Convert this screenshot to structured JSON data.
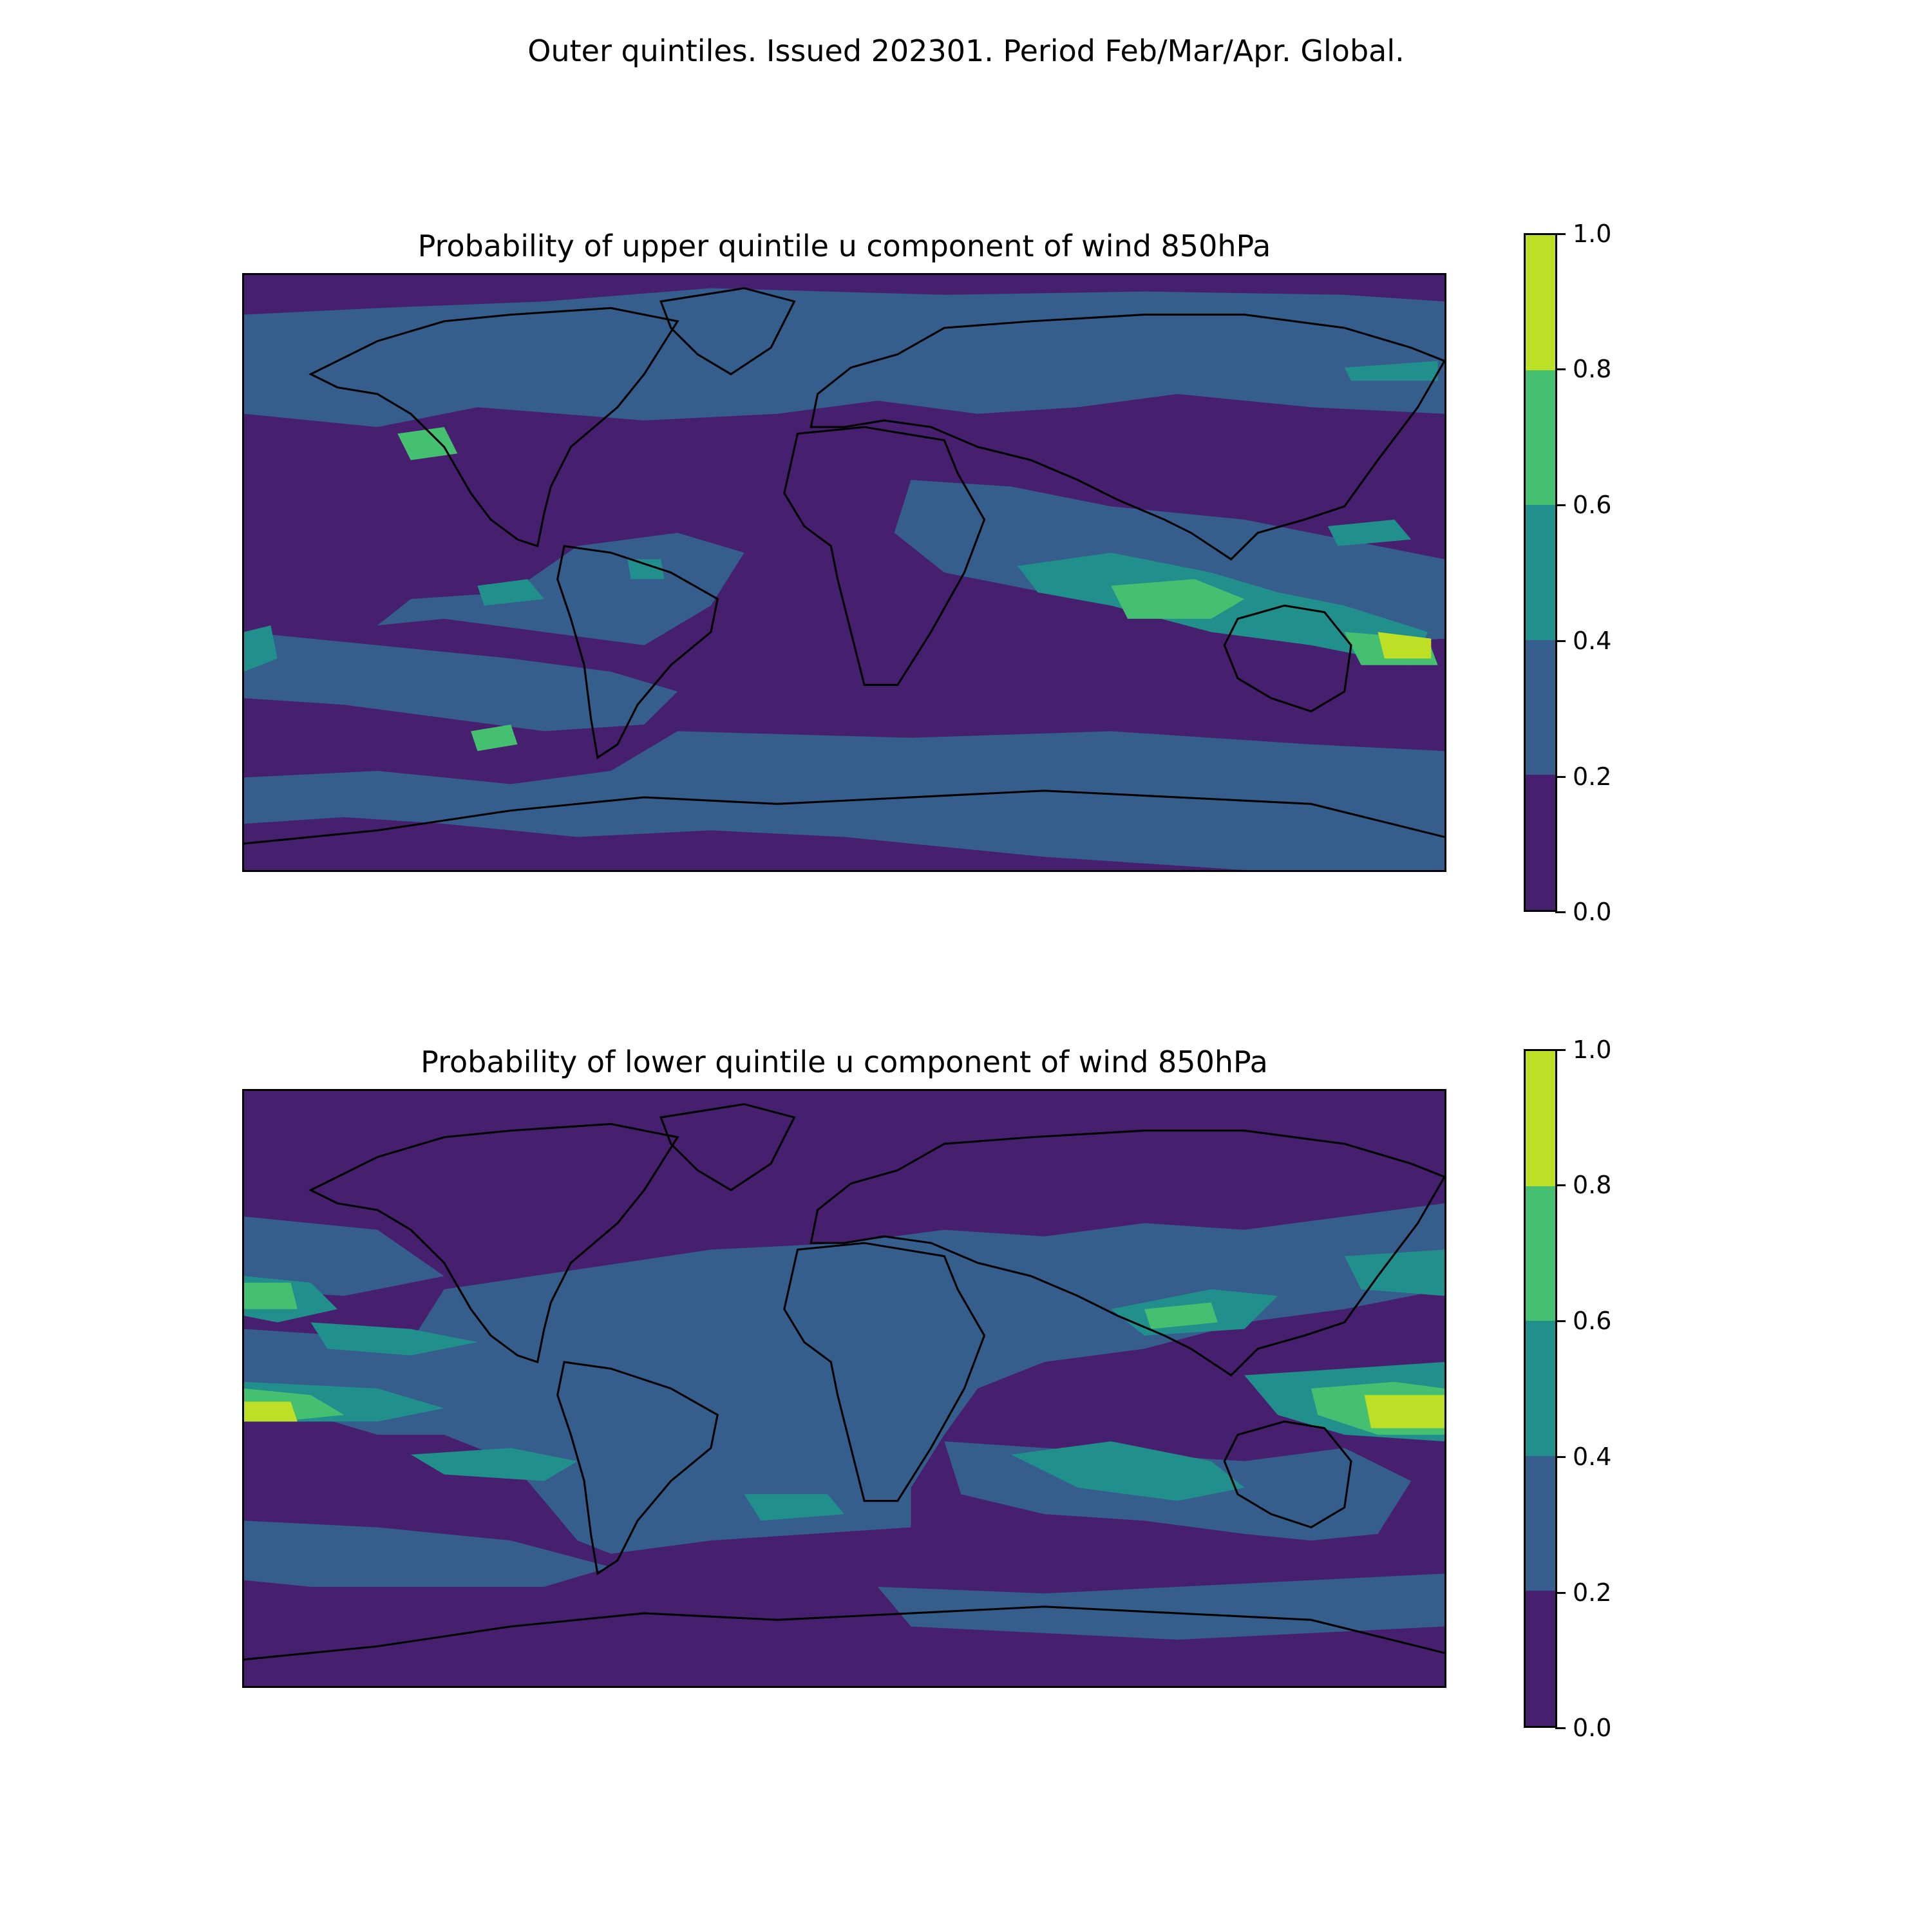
{
  "suptitle": "Outer quintiles. Issued 202301. Period Feb/Mar/Apr. Global.",
  "colors": {
    "level_0": "#46206e",
    "level_1": "#355e8c",
    "level_2": "#21908d",
    "level_3": "#45bf70",
    "level_4": "#bddf26",
    "coast": "#000000"
  },
  "colorbar_levels": [
    "0.0",
    "0.2",
    "0.4",
    "0.6",
    "0.8",
    "1.0"
  ],
  "panels": [
    {
      "title": "Probability of upper quintile u component of wind 850hPa"
    },
    {
      "title": "Probability of lower quintile u component of wind 850hPa"
    }
  ]
}
